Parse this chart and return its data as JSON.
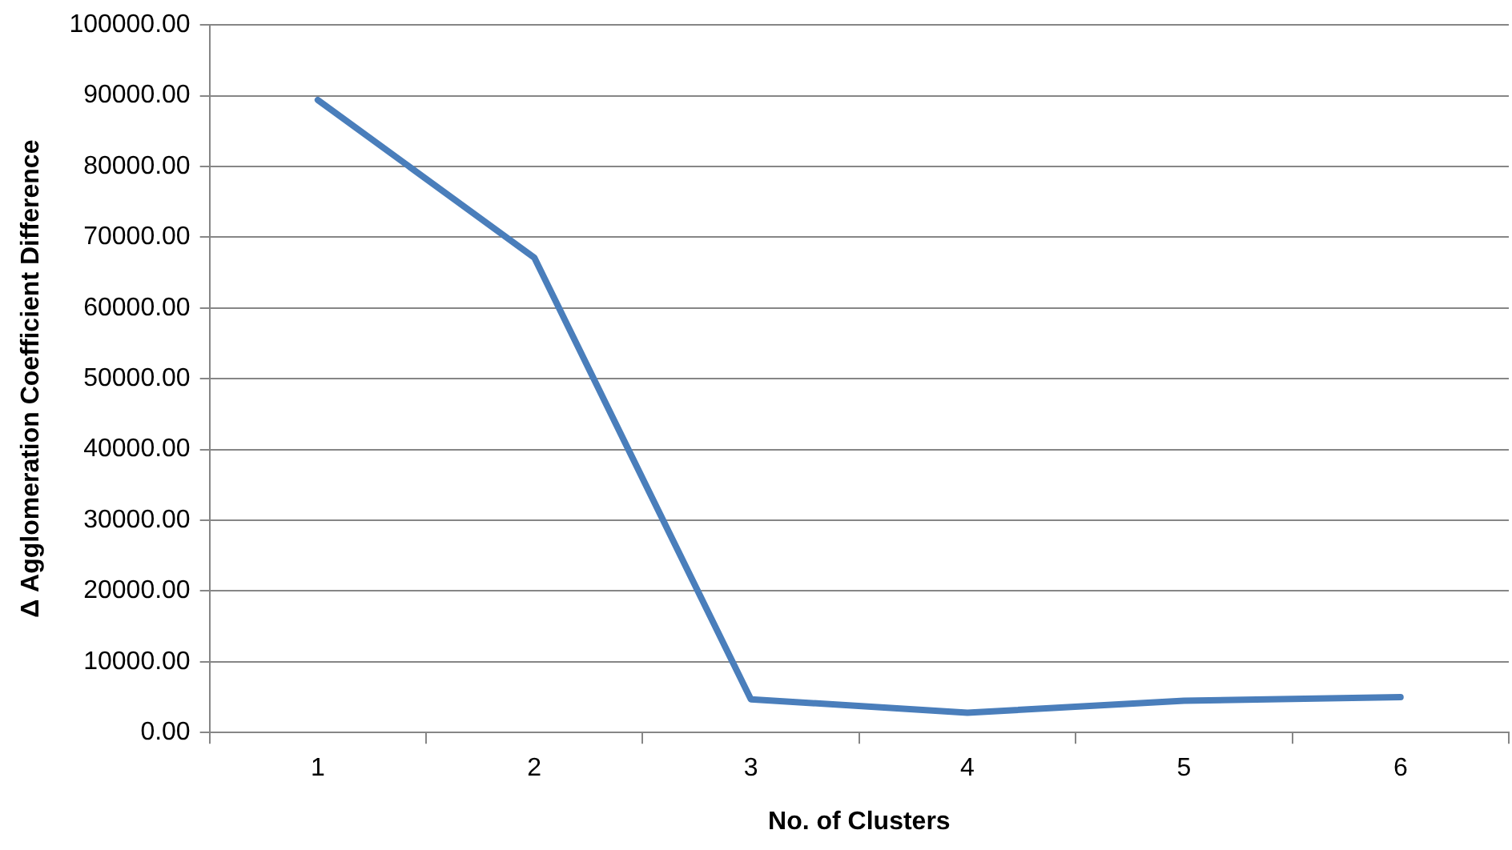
{
  "chart_data": {
    "type": "line",
    "xlabel": "No. of Clusters",
    "ylabel": "Δ Agglomeration Coefficient Difference",
    "categories": [
      "1",
      "2",
      "3",
      "4",
      "5",
      "6"
    ],
    "series": [
      {
        "color": "#4a7ebb",
        "values": [
          89400,
          67100,
          4700,
          2800,
          4500,
          5000
        ]
      }
    ],
    "ylim": [
      0,
      100000
    ],
    "yticks": [
      {
        "value": 0,
        "label": "0.00"
      },
      {
        "value": 10000,
        "label": "10000.00"
      },
      {
        "value": 20000,
        "label": "20000.00"
      },
      {
        "value": 30000,
        "label": "30000.00"
      },
      {
        "value": 40000,
        "label": "40000.00"
      },
      {
        "value": 50000,
        "label": "50000.00"
      },
      {
        "value": 60000,
        "label": "60000.00"
      },
      {
        "value": 70000,
        "label": "70000.00"
      },
      {
        "value": 80000,
        "label": "80000.00"
      },
      {
        "value": 90000,
        "label": "90000.00"
      },
      {
        "value": 100000,
        "label": "100000.00"
      }
    ],
    "grid": "y",
    "legend": false,
    "marker": "none",
    "line_style": "solid"
  }
}
